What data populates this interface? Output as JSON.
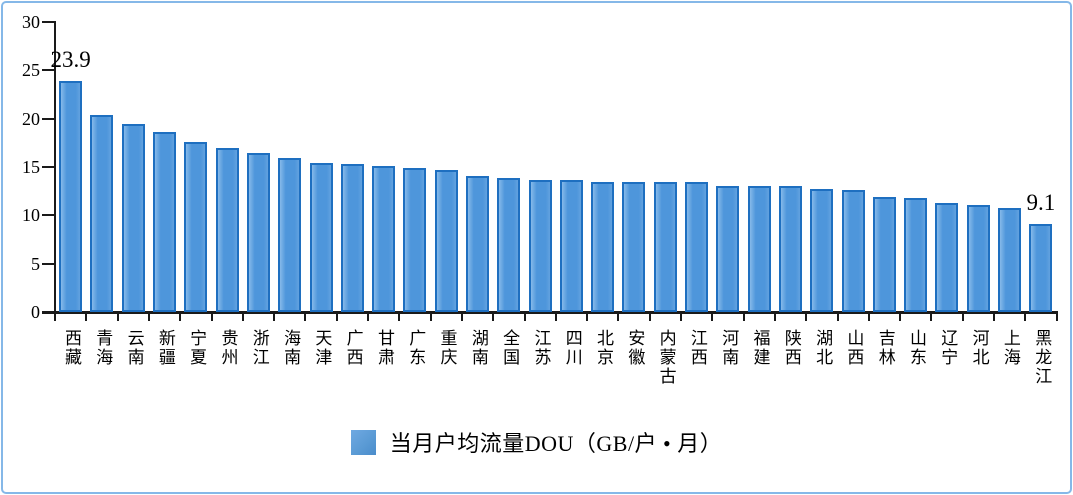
{
  "frame": {
    "border_color": "#85B8E8",
    "background": "#FFFFFF"
  },
  "chart_data": {
    "type": "bar",
    "title": "",
    "xlabel": "",
    "ylabel": "",
    "categories": [
      "西藏",
      "青海",
      "云南",
      "新疆",
      "宁夏",
      "贵州",
      "浙江",
      "海南",
      "天津",
      "广西",
      "甘肃",
      "广东",
      "重庆",
      "湖南",
      "全国",
      "江苏",
      "四川",
      "北京",
      "安徽",
      "内蒙古",
      "江西",
      "河南",
      "福建",
      "陕西",
      "湖北",
      "山西",
      "吉林",
      "山东",
      "辽宁",
      "河北",
      "上海",
      "黑龙江"
    ],
    "values": [
      23.9,
      20.4,
      19.4,
      18.6,
      17.6,
      17.0,
      16.4,
      15.9,
      15.4,
      15.3,
      15.1,
      14.9,
      14.7,
      14.1,
      13.9,
      13.7,
      13.7,
      13.5,
      13.5,
      13.4,
      13.4,
      13.0,
      13.0,
      13.0,
      12.7,
      12.6,
      11.9,
      11.8,
      11.3,
      11.1,
      10.8,
      9.1
    ],
    "ylim": [
      0,
      30
    ],
    "yticks": [
      0,
      5,
      10,
      15,
      20,
      25,
      30
    ],
    "grid": false,
    "annotations": [
      {
        "index": 0,
        "text": "23.9"
      },
      {
        "index": 31,
        "text": "9.1"
      }
    ],
    "legend": {
      "position": "bottom-center",
      "label": "当月户均流量DOU（GB/户 • 月）"
    },
    "colors": {
      "bar_fill": "#4E96DB",
      "bar_border": "#1E6FC0",
      "legend_swatch": "#5B9BD5",
      "axis_color": "#1a1a1a",
      "frame_border": "#85B8E8"
    }
  }
}
